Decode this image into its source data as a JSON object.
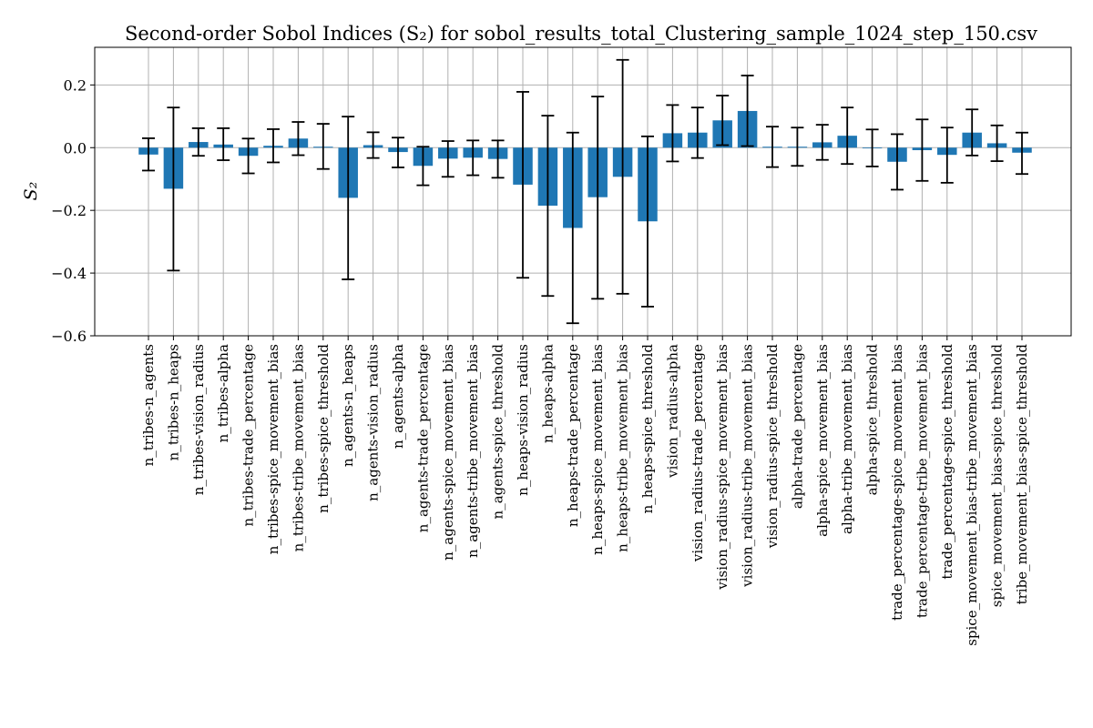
{
  "chart_data": {
    "type": "bar",
    "title": "Second-order Sobol Indices (S₂) for sobol_results_total_Clustering_sample_1024_step_150.csv",
    "xlabel": "",
    "ylabel": "S₂",
    "ylim": [
      -0.6,
      0.32
    ],
    "yticks": [
      -0.6,
      -0.4,
      -0.2,
      0.0,
      0.2
    ],
    "ytick_labels": [
      "−0.6",
      "−0.4",
      "−0.2",
      "0.0",
      "0.2"
    ],
    "grid": true,
    "categories": [
      "n_tribes-n_agents",
      "n_tribes-n_heaps",
      "n_tribes-vision_radius",
      "n_tribes-alpha",
      "n_tribes-trade_percentage",
      "n_tribes-spice_movement_bias",
      "n_tribes-tribe_movement_bias",
      "n_tribes-spice_threshold",
      "n_agents-n_heaps",
      "n_agents-vision_radius",
      "n_agents-alpha",
      "n_agents-trade_percentage",
      "n_agents-spice_movement_bias",
      "n_agents-tribe_movement_bias",
      "n_agents-spice_threshold",
      "n_heaps-vision_radius",
      "n_heaps-alpha",
      "n_heaps-trade_percentage",
      "n_heaps-spice_movement_bias",
      "n_heaps-tribe_movement_bias",
      "n_heaps-spice_threshold",
      "vision_radius-alpha",
      "vision_radius-trade_percentage",
      "vision_radius-spice_movement_bias",
      "vision_radius-tribe_movement_bias",
      "vision_radius-spice_threshold",
      "alpha-trade_percentage",
      "alpha-spice_movement_bias",
      "alpha-tribe_movement_bias",
      "alpha-spice_threshold",
      "trade_percentage-spice_movement_bias",
      "trade_percentage-tribe_movement_bias",
      "trade_percentage-spice_threshold",
      "spice_movement_bias-tribe_movement_bias",
      "spice_movement_bias-spice_threshold",
      "tribe_movement_bias-spice_threshold"
    ],
    "values": [
      -0.022,
      -0.131,
      0.018,
      0.01,
      -0.026,
      0.006,
      0.029,
      0.003,
      -0.16,
      0.008,
      -0.014,
      -0.058,
      -0.035,
      -0.032,
      -0.036,
      -0.118,
      -0.185,
      -0.256,
      -0.158,
      -0.093,
      -0.235,
      0.046,
      0.048,
      0.087,
      0.117,
      0.003,
      0.003,
      0.017,
      0.038,
      -0.001,
      -0.045,
      -0.008,
      -0.023,
      0.048,
      0.014,
      -0.016
    ],
    "err_low": [
      -0.073,
      -0.392,
      -0.026,
      -0.04,
      -0.082,
      -0.047,
      -0.024,
      -0.068,
      -0.42,
      -0.033,
      -0.063,
      -0.12,
      -0.093,
      -0.088,
      -0.096,
      -0.415,
      -0.473,
      -0.56,
      -0.482,
      -0.466,
      -0.507,
      -0.044,
      -0.033,
      0.008,
      0.005,
      -0.062,
      -0.058,
      -0.039,
      -0.052,
      -0.06,
      -0.134,
      -0.106,
      -0.112,
      -0.025,
      -0.043,
      -0.084
    ],
    "err_high": [
      0.03,
      0.128,
      0.062,
      0.062,
      0.029,
      0.059,
      0.082,
      0.076,
      0.099,
      0.049,
      0.032,
      0.003,
      0.021,
      0.023,
      0.023,
      0.178,
      0.102,
      0.048,
      0.163,
      0.28,
      0.036,
      0.136,
      0.128,
      0.166,
      0.23,
      0.067,
      0.064,
      0.073,
      0.128,
      0.058,
      0.043,
      0.09,
      0.064,
      0.122,
      0.071,
      0.048
    ],
    "colors": {
      "bar": "#1f77b4",
      "error": "#000000",
      "grid": "#b0b0b0"
    }
  }
}
